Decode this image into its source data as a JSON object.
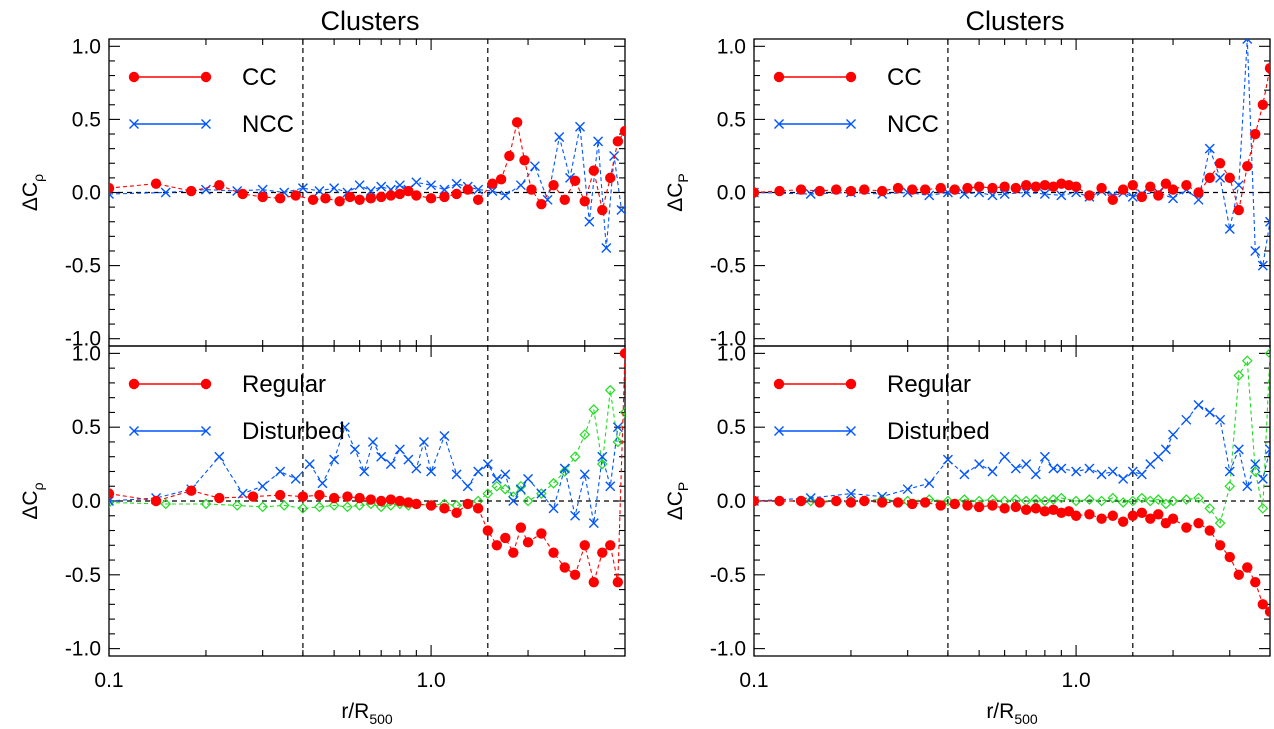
{
  "chart_data": [
    {
      "type": "line",
      "panel": "top-left",
      "title": "Clusters",
      "ylabel": {
        "main": "ΔC",
        "sub": "ρ"
      },
      "xscale": "log",
      "xlim": [
        0.1,
        4.0
      ],
      "ylim": [
        -1.05,
        1.05
      ],
      "yticks": [
        "-1.0",
        "-0.5",
        "0.0",
        "0.5",
        "1.0"
      ],
      "vlines": [
        0.4,
        1.5
      ],
      "hline": 0.0,
      "legend": "top-left",
      "series": [
        {
          "name": "CC",
          "color": "#ff0000",
          "marker": "dot",
          "x": [
            0.1,
            0.14,
            0.18,
            0.22,
            0.26,
            0.3,
            0.34,
            0.38,
            0.43,
            0.47,
            0.52,
            0.56,
            0.6,
            0.65,
            0.7,
            0.75,
            0.8,
            0.85,
            0.9,
            1.0,
            1.1,
            1.2,
            1.3,
            1.4,
            1.55,
            1.65,
            1.75,
            1.85,
            1.95,
            2.05,
            2.2,
            2.4,
            2.6,
            2.8,
            3.0,
            3.2,
            3.4,
            3.6,
            3.8,
            4.0
          ],
          "y": [
            0.03,
            0.06,
            0.01,
            0.05,
            -0.01,
            -0.03,
            -0.04,
            -0.02,
            -0.05,
            -0.04,
            -0.06,
            -0.03,
            -0.05,
            -0.04,
            -0.03,
            -0.02,
            -0.01,
            0.01,
            -0.02,
            -0.04,
            -0.03,
            -0.01,
            0.02,
            -0.05,
            0.06,
            0.09,
            0.25,
            0.48,
            0.22,
            0.02,
            -0.08,
            0.05,
            -0.05,
            0.08,
            -0.06,
            0.15,
            -0.12,
            0.1,
            0.35,
            0.42
          ]
        },
        {
          "name": "NCC",
          "color": "#0055ff",
          "marker": "x",
          "x": [
            0.1,
            0.15,
            0.2,
            0.25,
            0.3,
            0.35,
            0.4,
            0.45,
            0.5,
            0.55,
            0.6,
            0.65,
            0.7,
            0.75,
            0.8,
            0.85,
            0.9,
            1.0,
            1.1,
            1.2,
            1.3,
            1.4,
            1.55,
            1.7,
            1.9,
            2.1,
            2.3,
            2.5,
            2.7,
            2.9,
            3.1,
            3.3,
            3.5,
            3.7,
            3.9
          ],
          "y": [
            -0.01,
            0.0,
            0.02,
            0.01,
            0.02,
            0.0,
            0.03,
            0.01,
            0.03,
            0.0,
            0.05,
            0.01,
            0.04,
            0.02,
            0.05,
            0.02,
            0.07,
            0.05,
            0.02,
            0.06,
            0.04,
            0.02,
            0.01,
            -0.02,
            0.05,
            0.18,
            -0.05,
            0.38,
            0.1,
            0.45,
            -0.2,
            0.35,
            -0.38,
            0.25,
            -0.12
          ]
        }
      ]
    },
    {
      "type": "line",
      "panel": "top-right",
      "title": "Clusters",
      "ylabel": {
        "main": "ΔC",
        "sub": "P"
      },
      "xscale": "log",
      "xlim": [
        0.1,
        4.0
      ],
      "ylim": [
        -1.05,
        1.05
      ],
      "yticks": [
        "-1.0",
        "-0.5",
        "0.0",
        "0.5",
        "1.0"
      ],
      "vlines": [
        0.4,
        1.5
      ],
      "hline": 0.0,
      "legend": "top-left",
      "series": [
        {
          "name": "CC",
          "color": "#ff0000",
          "marker": "dot",
          "x": [
            0.1,
            0.12,
            0.14,
            0.16,
            0.18,
            0.2,
            0.22,
            0.25,
            0.28,
            0.31,
            0.34,
            0.38,
            0.42,
            0.46,
            0.5,
            0.55,
            0.6,
            0.65,
            0.7,
            0.75,
            0.8,
            0.85,
            0.9,
            0.95,
            1.0,
            1.1,
            1.2,
            1.3,
            1.4,
            1.5,
            1.6,
            1.7,
            1.8,
            1.9,
            2.0,
            2.2,
            2.4,
            2.6,
            2.8,
            3.0,
            3.2,
            3.4,
            3.6,
            3.8,
            4.0
          ],
          "y": [
            0.0,
            0.01,
            0.02,
            0.01,
            0.02,
            0.01,
            0.02,
            0.01,
            0.03,
            0.02,
            0.02,
            0.03,
            0.02,
            0.03,
            0.04,
            0.03,
            0.04,
            0.03,
            0.05,
            0.04,
            0.05,
            0.04,
            0.06,
            0.05,
            0.04,
            -0.02,
            0.03,
            -0.05,
            0.02,
            0.05,
            -0.03,
            0.04,
            -0.02,
            0.06,
            0.02,
            0.05,
            0.0,
            0.1,
            0.2,
            0.1,
            -0.12,
            0.18,
            0.4,
            0.6,
            0.85
          ]
        },
        {
          "name": "NCC",
          "color": "#0055ff",
          "marker": "x",
          "x": [
            0.1,
            0.15,
            0.2,
            0.25,
            0.3,
            0.35,
            0.4,
            0.45,
            0.5,
            0.55,
            0.6,
            0.7,
            0.8,
            0.9,
            1.0,
            1.1,
            1.2,
            1.3,
            1.4,
            1.5,
            1.6,
            1.8,
            2.0,
            2.2,
            2.4,
            2.6,
            2.8,
            3.0,
            3.2,
            3.4,
            3.6,
            3.8,
            4.0
          ],
          "y": [
            0.0,
            -0.01,
            0.0,
            -0.01,
            0.0,
            -0.02,
            0.0,
            -0.01,
            0.0,
            -0.02,
            -0.01,
            0.0,
            -0.01,
            -0.02,
            0.0,
            -0.03,
            0.01,
            -0.02,
            0.0,
            -0.03,
            -0.01,
            0.0,
            -0.04,
            0.02,
            -0.05,
            0.3,
            0.1,
            -0.25,
            0.05,
            1.05,
            -0.4,
            -0.5,
            -0.2
          ]
        }
      ]
    },
    {
      "type": "line",
      "panel": "bottom-left",
      "xlabel": {
        "main": "r/R",
        "sub": "500"
      },
      "ylabel": {
        "main": "ΔC",
        "sub": "ρ"
      },
      "xscale": "log",
      "xlim": [
        0.1,
        4.0
      ],
      "ylim": [
        -1.05,
        1.05
      ],
      "xticks": [
        "0.1",
        "1.0"
      ],
      "yticks": [
        "-1.0",
        "-0.5",
        "0.0",
        "0.5",
        "1.0"
      ],
      "vlines": [
        0.4,
        1.5
      ],
      "hline": 0.0,
      "legend": "top-left",
      "series": [
        {
          "name": "Regular",
          "color": "#ff0000",
          "marker": "dot",
          "x": [
            0.1,
            0.14,
            0.18,
            0.22,
            0.28,
            0.34,
            0.4,
            0.45,
            0.5,
            0.55,
            0.6,
            0.65,
            0.7,
            0.75,
            0.8,
            0.85,
            0.9,
            1.0,
            1.1,
            1.2,
            1.3,
            1.4,
            1.5,
            1.6,
            1.7,
            1.8,
            1.9,
            2.0,
            2.2,
            2.4,
            2.6,
            2.8,
            3.0,
            3.2,
            3.4,
            3.6,
            3.8,
            4.0
          ],
          "y": [
            0.05,
            0.0,
            0.07,
            0.02,
            0.03,
            0.04,
            0.03,
            0.04,
            0.02,
            0.03,
            0.02,
            0.01,
            0.0,
            0.01,
            0.0,
            -0.01,
            -0.02,
            -0.03,
            -0.05,
            -0.08,
            -0.02,
            -0.05,
            -0.2,
            -0.3,
            -0.25,
            -0.35,
            -0.18,
            -0.28,
            -0.22,
            -0.35,
            -0.45,
            -0.5,
            -0.3,
            -0.55,
            -0.35,
            -0.3,
            -0.55,
            1.0
          ]
        },
        {
          "name": "Disturbed",
          "color": "#0055ff",
          "marker": "x",
          "x": [
            0.1,
            0.14,
            0.18,
            0.22,
            0.26,
            0.3,
            0.34,
            0.38,
            0.42,
            0.46,
            0.5,
            0.54,
            0.58,
            0.62,
            0.66,
            0.7,
            0.75,
            0.8,
            0.85,
            0.9,
            0.95,
            1.0,
            1.1,
            1.2,
            1.3,
            1.4,
            1.5,
            1.6,
            1.7,
            1.8,
            1.9,
            2.0,
            2.2,
            2.4,
            2.6,
            2.8,
            3.0,
            3.2,
            3.4,
            3.6,
            3.8
          ],
          "y": [
            0.0,
            0.02,
            0.08,
            0.3,
            0.05,
            0.1,
            0.2,
            0.15,
            0.25,
            0.12,
            0.28,
            0.5,
            0.35,
            0.2,
            0.4,
            0.3,
            0.25,
            0.35,
            0.28,
            0.22,
            0.4,
            0.2,
            0.44,
            0.18,
            0.1,
            0.2,
            0.25,
            0.15,
            0.18,
            0.0,
            0.08,
            0.15,
            0.05,
            -0.05,
            0.22,
            -0.1,
            0.18,
            -0.15,
            0.3,
            0.1,
            0.5
          ]
        },
        {
          "name": "",
          "color": "#22dd22",
          "marker": "diamond",
          "x": [
            0.1,
            0.15,
            0.2,
            0.25,
            0.3,
            0.35,
            0.4,
            0.45,
            0.5,
            0.55,
            0.6,
            0.65,
            0.7,
            0.75,
            0.8,
            0.85,
            0.9,
            1.0,
            1.1,
            1.2,
            1.3,
            1.4,
            1.5,
            1.6,
            1.7,
            1.8,
            1.9,
            2.0,
            2.2,
            2.4,
            2.6,
            2.8,
            3.0,
            3.2,
            3.4,
            3.6,
            3.8,
            4.0
          ],
          "y": [
            -0.01,
            -0.02,
            -0.02,
            -0.03,
            -0.04,
            -0.03,
            -0.05,
            -0.04,
            -0.03,
            -0.04,
            -0.03,
            -0.02,
            -0.04,
            -0.03,
            -0.02,
            -0.03,
            -0.02,
            -0.03,
            -0.02,
            -0.03,
            -0.02,
            0.0,
            0.05,
            0.1,
            0.08,
            0.03,
            0.1,
            0.0,
            0.05,
            0.12,
            0.2,
            0.3,
            0.45,
            0.62,
            0.25,
            0.75,
            0.4,
            0.6
          ]
        }
      ]
    },
    {
      "type": "line",
      "panel": "bottom-right",
      "xlabel": {
        "main": "r/R",
        "sub": "500"
      },
      "ylabel": {
        "main": "ΔC",
        "sub": "P"
      },
      "xscale": "log",
      "xlim": [
        0.1,
        4.0
      ],
      "ylim": [
        -1.05,
        1.05
      ],
      "xticks": [
        "0.1",
        "1.0"
      ],
      "yticks": [
        "-1.0",
        "-0.5",
        "0.0",
        "0.5",
        "1.0"
      ],
      "vlines": [
        0.4,
        1.5
      ],
      "hline": 0.0,
      "legend": "top-left",
      "series": [
        {
          "name": "Regular",
          "color": "#ff0000",
          "marker": "dot",
          "x": [
            0.1,
            0.12,
            0.14,
            0.16,
            0.18,
            0.2,
            0.22,
            0.25,
            0.28,
            0.31,
            0.34,
            0.38,
            0.42,
            0.46,
            0.5,
            0.55,
            0.6,
            0.65,
            0.7,
            0.75,
            0.8,
            0.85,
            0.9,
            0.95,
            1.0,
            1.1,
            1.2,
            1.3,
            1.4,
            1.5,
            1.6,
            1.7,
            1.8,
            1.9,
            2.0,
            2.2,
            2.4,
            2.6,
            2.8,
            3.0,
            3.2,
            3.4,
            3.6,
            3.8,
            4.0
          ],
          "y": [
            0.0,
            0.0,
            0.0,
            -0.01,
            0.0,
            -0.01,
            0.0,
            -0.01,
            -0.01,
            -0.02,
            -0.01,
            -0.03,
            -0.02,
            -0.03,
            -0.04,
            -0.03,
            -0.05,
            -0.04,
            -0.06,
            -0.05,
            -0.07,
            -0.06,
            -0.08,
            -0.07,
            -0.1,
            -0.09,
            -0.12,
            -0.1,
            -0.14,
            -0.1,
            -0.08,
            -0.12,
            -0.09,
            -0.15,
            -0.12,
            -0.18,
            -0.15,
            -0.2,
            -0.3,
            -0.38,
            -0.5,
            -0.45,
            -0.55,
            -0.7,
            -0.75
          ]
        },
        {
          "name": "Disturbed",
          "color": "#0055ff",
          "marker": "x",
          "x": [
            0.1,
            0.15,
            0.2,
            0.25,
            0.3,
            0.35,
            0.4,
            0.45,
            0.5,
            0.55,
            0.6,
            0.65,
            0.7,
            0.75,
            0.8,
            0.85,
            0.9,
            1.0,
            1.1,
            1.2,
            1.3,
            1.4,
            1.5,
            1.6,
            1.7,
            1.8,
            1.9,
            2.0,
            2.2,
            2.4,
            2.6,
            2.8,
            3.0,
            3.2,
            3.4,
            3.6,
            3.8,
            4.0
          ],
          "y": [
            0.0,
            0.02,
            0.05,
            0.03,
            0.08,
            0.12,
            0.28,
            0.18,
            0.25,
            0.2,
            0.3,
            0.22,
            0.25,
            0.18,
            0.3,
            0.22,
            0.22,
            0.2,
            0.22,
            0.18,
            0.2,
            0.15,
            0.2,
            0.18,
            0.25,
            0.3,
            0.35,
            0.45,
            0.55,
            0.65,
            0.6,
            0.55,
            0.2,
            0.35,
            0.1,
            0.25,
            0.15,
            0.35
          ]
        },
        {
          "name": "",
          "color": "#22dd22",
          "marker": "diamond",
          "x": [
            0.1,
            0.15,
            0.2,
            0.25,
            0.3,
            0.35,
            0.4,
            0.45,
            0.5,
            0.55,
            0.6,
            0.65,
            0.7,
            0.75,
            0.8,
            0.85,
            0.9,
            1.0,
            1.1,
            1.2,
            1.3,
            1.4,
            1.5,
            1.6,
            1.7,
            1.8,
            1.9,
            2.0,
            2.2,
            2.4,
            2.6,
            2.8,
            3.0,
            3.2,
            3.4,
            3.6,
            3.8,
            4.0
          ],
          "y": [
            0.0,
            0.0,
            0.0,
            0.01,
            0.0,
            0.01,
            0.0,
            0.01,
            0.0,
            0.01,
            0.0,
            0.01,
            0.0,
            0.01,
            0.0,
            0.01,
            0.02,
            0.0,
            0.01,
            0.0,
            0.02,
            -0.01,
            0.0,
            0.02,
            0.0,
            0.01,
            -0.02,
            0.0,
            0.01,
            0.02,
            -0.05,
            -0.15,
            0.1,
            0.85,
            0.95,
            0.2,
            -0.05,
            1.0
          ]
        }
      ]
    }
  ]
}
